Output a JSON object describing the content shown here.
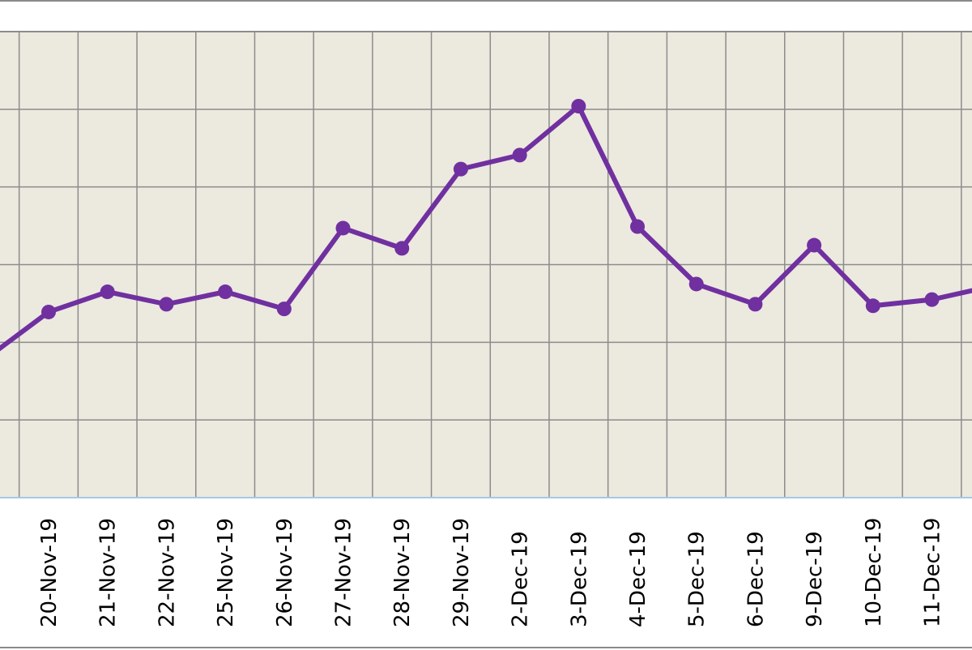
{
  "chart_data": {
    "type": "line",
    "title": "",
    "xlabel": "",
    "ylabel": "",
    "grid": true,
    "colors": {
      "plot_background": "#ece9df",
      "grid": "#8c8c8c",
      "series": "#7030a0",
      "axis_line": "#a6c8e6",
      "partial_label": "#29a3e0"
    },
    "categories": [
      "20-Nov-19",
      "21-Nov-19",
      "22-Nov-19",
      "25-Nov-19",
      "26-Nov-19",
      "27-Nov-19",
      "28-Nov-19",
      "29-Nov-19",
      "2-Dec-19",
      "3-Dec-19",
      "4-Dec-19",
      "5-Dec-19",
      "6-Dec-19",
      "9-Dec-19",
      "10-Dec-19",
      "11-Dec-19"
    ],
    "series": [
      {
        "values": [
          2.39,
          2.65,
          2.49,
          2.65,
          2.43,
          3.47,
          3.21,
          4.23,
          4.41,
          5.04,
          3.49,
          2.75,
          2.49,
          3.25,
          2.47,
          2.55
        ]
      }
    ],
    "ylim": [
      0,
      6
    ]
  }
}
